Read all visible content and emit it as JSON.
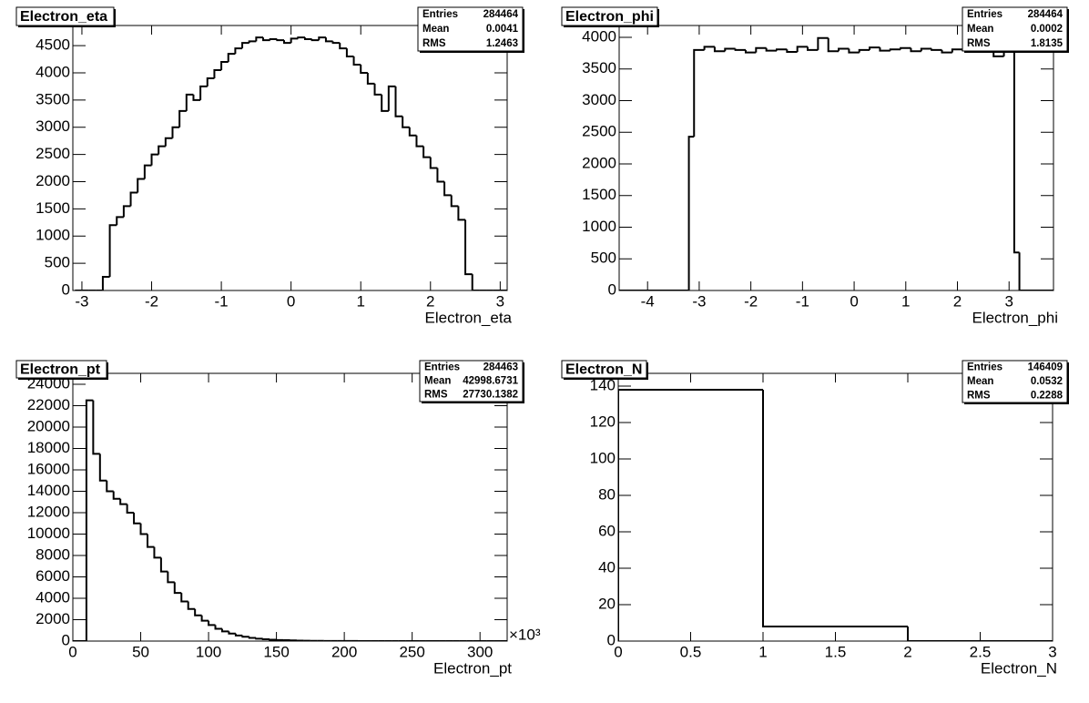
{
  "chart_data": [
    {
      "type": "histogram",
      "title": "Electron_eta",
      "x_label": "Electron_eta",
      "color": "#000000",
      "stats": {
        "labels": [
          "Entries",
          "Mean",
          "RMS"
        ],
        "values": [
          284464,
          0.0041,
          1.2463
        ]
      },
      "xlim": [
        -3.13,
        3.1
      ],
      "ylim": [
        0,
        4870
      ],
      "xticks": [
        -3,
        -2,
        -1,
        0,
        1,
        2,
        3
      ],
      "yticks": [
        0,
        500,
        1000,
        1500,
        2000,
        2500,
        3000,
        3500,
        4000,
        4500
      ],
      "bins": [
        -3.1,
        -3,
        -2.9,
        -2.8,
        -2.7,
        -2.6,
        -2.5,
        -2.4,
        -2.3,
        -2.2,
        -2.1,
        -2,
        -1.9,
        -1.8,
        -1.7,
        -1.6,
        -1.5,
        -1.4,
        -1.3,
        -1.2,
        -1.1,
        -1,
        -0.9,
        -0.8,
        -0.7,
        -0.6,
        -0.5,
        -0.4,
        -0.3,
        -0.2,
        -0.1,
        0,
        0.1,
        0.2,
        0.3,
        0.4,
        0.5,
        0.6,
        0.7,
        0.8,
        0.9,
        1,
        1.1,
        1.2,
        1.3,
        1.4,
        1.5,
        1.6,
        1.7,
        1.8,
        1.9,
        2,
        2.1,
        2.2,
        2.3,
        2.4,
        2.5,
        2.6,
        2.7,
        2.8,
        2.9,
        3,
        3.1
      ],
      "values": [
        0,
        0,
        0,
        0,
        250,
        1200,
        1350,
        1550,
        1800,
        2050,
        2300,
        2500,
        2650,
        2800,
        3000,
        3300,
        3600,
        3500,
        3750,
        3900,
        4050,
        4200,
        4350,
        4450,
        4550,
        4580,
        4650,
        4600,
        4620,
        4600,
        4550,
        4630,
        4650,
        4620,
        4600,
        4650,
        4580,
        4550,
        4450,
        4300,
        4150,
        4000,
        3800,
        3600,
        3300,
        3750,
        3200,
        3000,
        2850,
        2650,
        2450,
        2250,
        2000,
        1750,
        1550,
        1300,
        300,
        0,
        0,
        0,
        0,
        0
      ]
    },
    {
      "type": "histogram",
      "title": "Electron_phi",
      "x_label": "Electron_phi",
      "color": "#000000",
      "stats": {
        "labels": [
          "Entries",
          "Mean",
          "RMS"
        ],
        "values": [
          284464,
          0.0002,
          1.8135
        ]
      },
      "xlim": [
        -4.55,
        3.86
      ],
      "ylim": [
        0,
        4187
      ],
      "xticks": [
        -4,
        -3,
        -2,
        -1,
        0,
        1,
        2,
        3
      ],
      "yticks": [
        0,
        500,
        1000,
        1500,
        2000,
        2500,
        3000,
        3500,
        4000
      ],
      "bins": [
        -4.55,
        -3.2,
        -3.1,
        -2.9,
        -2.7,
        -2.5,
        -2.3,
        -2.1,
        -1.9,
        -1.7,
        -1.5,
        -1.3,
        -1.1,
        -0.9,
        -0.7,
        -0.5,
        -0.3,
        -0.1,
        0.1,
        0.3,
        0.5,
        0.7,
        0.9,
        1.1,
        1.3,
        1.5,
        1.7,
        1.9,
        2.1,
        2.3,
        2.5,
        2.7,
        2.9,
        3.1,
        3.2,
        3.86
      ],
      "values": [
        0,
        2430,
        3800,
        3850,
        3780,
        3820,
        3800,
        3760,
        3830,
        3790,
        3810,
        3770,
        3850,
        3800,
        3990,
        3780,
        3820,
        3760,
        3800,
        3840,
        3790,
        3810,
        3830,
        3780,
        3820,
        3800,
        3760,
        3810,
        3800,
        3790,
        3850,
        3700,
        3820,
        600,
        0
      ]
    },
    {
      "type": "histogram",
      "title": "Electron_pt",
      "x_label": "Electron_pt",
      "x_exponent": "×10³",
      "color": "#000000",
      "stats": {
        "labels": [
          "Entries",
          "Mean",
          "RMS"
        ],
        "values": [
          284463,
          42998.6731,
          27730.1382
        ]
      },
      "xlim": [
        0,
        320
      ],
      "ylim": [
        0,
        25020
      ],
      "xticks": [
        0,
        50,
        100,
        150,
        200,
        250,
        300
      ],
      "yticks": [
        0,
        2000,
        4000,
        6000,
        8000,
        10000,
        12000,
        14000,
        16000,
        18000,
        20000,
        22000,
        24000
      ],
      "bins": [
        0,
        10,
        15,
        20,
        25,
        30,
        35,
        40,
        45,
        50,
        55,
        60,
        65,
        70,
        75,
        80,
        85,
        90,
        95,
        100,
        105,
        110,
        115,
        120,
        125,
        130,
        135,
        140,
        145,
        150,
        155,
        160,
        165,
        170,
        175,
        180,
        185,
        190,
        195,
        200,
        205,
        210,
        215,
        220,
        225,
        230,
        235,
        240,
        245,
        250,
        255,
        260,
        265,
        270,
        275,
        280,
        285,
        290,
        295,
        300,
        305,
        310,
        315,
        320
      ],
      "values": [
        0,
        22500,
        17500,
        15000,
        14000,
        13300,
        12800,
        12000,
        11000,
        10000,
        8800,
        7800,
        6500,
        5500,
        4500,
        3700,
        3000,
        2400,
        1900,
        1500,
        1150,
        900,
        700,
        520,
        400,
        300,
        220,
        170,
        130,
        100,
        80,
        60,
        45,
        35,
        25,
        20,
        15,
        12,
        10,
        8,
        6,
        5,
        4,
        3,
        3,
        2,
        2,
        2,
        1,
        1,
        1,
        1,
        1,
        1,
        1,
        1,
        1,
        1,
        1,
        1,
        1,
        1,
        0
      ]
    },
    {
      "type": "histogram",
      "title": "Electron_N",
      "x_label": "Electron_N",
      "color": "#000000",
      "stats": {
        "labels": [
          "Entries",
          "Mean",
          "RMS"
        ],
        "values": [
          146409,
          0.0532,
          0.2288
        ]
      },
      "xlim": [
        0,
        3
      ],
      "ylim": [
        0,
        147
      ],
      "xticks": [
        0,
        0.5,
        1,
        1.5,
        2,
        2.5,
        3
      ],
      "yticks": [
        0,
        20,
        40,
        60,
        80,
        100,
        120,
        140
      ],
      "bins": [
        0,
        1,
        2,
        3
      ],
      "values": [
        138,
        8,
        0
      ]
    }
  ]
}
